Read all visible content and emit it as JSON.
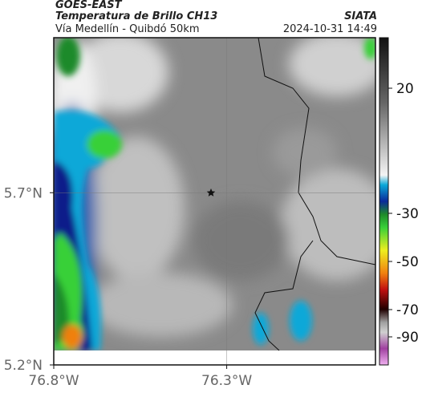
{
  "header": {
    "satellite": "GOES-EAST",
    "product": "Temperatura de Brillo CH13",
    "region": "Vía Medellín - Quibdó 50km",
    "source": "SIATA",
    "timestamp": "2024-10-31 14:49"
  },
  "map": {
    "lat_lim": [
      5.2,
      6.15
    ],
    "lon_lim": [
      -76.8,
      -75.87
    ],
    "lat_ticks": [
      {
        "value": 5.7,
        "label": "5.7°N"
      },
      {
        "value": 5.2,
        "label": "5.2°N"
      }
    ],
    "lon_ticks": [
      {
        "value": -76.8,
        "label": "76.8°W"
      },
      {
        "value": -76.3,
        "label": "76.3°W"
      }
    ]
  },
  "colorbar": {
    "ticks": [
      20,
      -30,
      -50,
      -70,
      -90
    ]
  }
}
